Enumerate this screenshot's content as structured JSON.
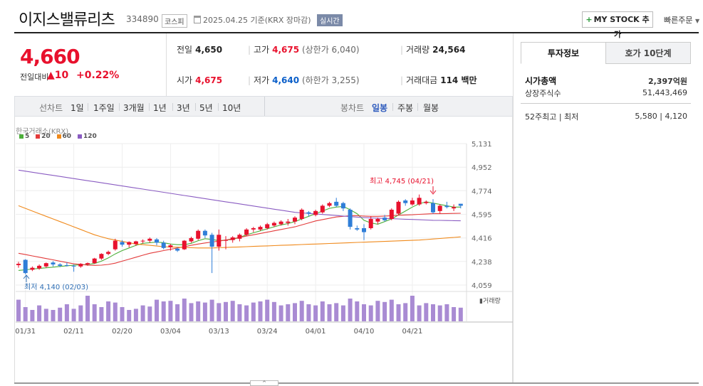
{
  "stock": {
    "name": "이지스밸류리츠",
    "code": "334890",
    "market": "코스피",
    "date_note": "2025.04.25  기준(KRX 장마감)",
    "realtime_label": "실시간",
    "mystock_label": "MY STOCK 추가",
    "quick_order_label": "빠른주문"
  },
  "price": {
    "current": "4,660",
    "change_label": "전일대비",
    "change_arrow": "▲",
    "change_value": "10",
    "change_pct": "+0.22%"
  },
  "stats": {
    "prev_label": "전일",
    "prev": "4,650",
    "high_label": "고가",
    "high": "4,675",
    "upper_limit": "(상한가 6,040)",
    "volume_label": "거래량",
    "volume": "24,564",
    "open_label": "시가",
    "open": "4,675",
    "low_label": "저가",
    "low": "4,640",
    "lower_limit": "(하한가 3,255)",
    "amount_label": "거래대금",
    "amount": "114 백만"
  },
  "toolbar": {
    "line_label": "선차트",
    "periods": [
      "1일",
      "1주일",
      "3개월",
      "1년",
      "3년",
      "5년",
      "10년"
    ],
    "candle_label": "봉차트",
    "candles": [
      "일봉",
      "주봉",
      "월봉"
    ],
    "active_candle": "일봉"
  },
  "chart_meta": {
    "exchange": "한국거래소(KRX)",
    "ma_legend": [
      {
        "label": "5",
        "color": "#4caf3a"
      },
      {
        "label": "20",
        "color": "#e33b3b"
      },
      {
        "label": "60",
        "color": "#f08a1c"
      },
      {
        "label": "120",
        "color": "#8a5cc2"
      }
    ],
    "volume_label": "거래량",
    "high_note": "최고 4,745 (04/21)",
    "low_note": "최저 4,140 (02/03)",
    "up_color": "#e8112d",
    "down_color": "#2f7ed8",
    "volume_color": "#a98bd3"
  },
  "chart_data": {
    "type": "candlestick",
    "y_ticks": [
      5131,
      4952,
      4774,
      4595,
      4416,
      4238,
      4059
    ],
    "ylim": [
      4059,
      5131
    ],
    "x_ticks": [
      "01/31",
      "02/11",
      "02/20",
      "03/04",
      "03/13",
      "03/24",
      "04/01",
      "04/10",
      "04/21"
    ],
    "x_tick_index": [
      1,
      8,
      15,
      22,
      29,
      36,
      43,
      50,
      57
    ],
    "candles": [
      {
        "o": 4210,
        "h": 4235,
        "l": 4190,
        "c": 4220
      },
      {
        "o": 4250,
        "h": 4255,
        "l": 4140,
        "c": 4150
      },
      {
        "o": 4175,
        "h": 4200,
        "l": 4165,
        "c": 4190
      },
      {
        "o": 4185,
        "h": 4215,
        "l": 4175,
        "c": 4205
      },
      {
        "o": 4200,
        "h": 4230,
        "l": 4190,
        "c": 4225
      },
      {
        "o": 4230,
        "h": 4240,
        "l": 4200,
        "c": 4215
      },
      {
        "o": 4215,
        "h": 4225,
        "l": 4195,
        "c": 4205
      },
      {
        "o": 4210,
        "h": 4230,
        "l": 4200,
        "c": 4205
      },
      {
        "o": 4205,
        "h": 4215,
        "l": 4160,
        "c": 4200
      },
      {
        "o": 4200,
        "h": 4225,
        "l": 4190,
        "c": 4220
      },
      {
        "o": 4215,
        "h": 4230,
        "l": 4205,
        "c": 4225
      },
      {
        "o": 4225,
        "h": 4265,
        "l": 4220,
        "c": 4260
      },
      {
        "o": 4260,
        "h": 4300,
        "l": 4250,
        "c": 4295
      },
      {
        "o": 4295,
        "h": 4320,
        "l": 4285,
        "c": 4310
      },
      {
        "o": 4330,
        "h": 4410,
        "l": 4320,
        "c": 4395
      },
      {
        "o": 4385,
        "h": 4400,
        "l": 4350,
        "c": 4365
      },
      {
        "o": 4365,
        "h": 4390,
        "l": 4345,
        "c": 4385
      },
      {
        "o": 4370,
        "h": 4395,
        "l": 4355,
        "c": 4390
      },
      {
        "o": 4390,
        "h": 4405,
        "l": 4375,
        "c": 4395
      },
      {
        "o": 4395,
        "h": 4420,
        "l": 4380,
        "c": 4410
      },
      {
        "o": 4405,
        "h": 4415,
        "l": 4360,
        "c": 4380
      },
      {
        "o": 4380,
        "h": 4395,
        "l": 4330,
        "c": 4340
      },
      {
        "o": 4345,
        "h": 4370,
        "l": 4320,
        "c": 4360
      },
      {
        "o": 4335,
        "h": 4345,
        "l": 4310,
        "c": 4320
      },
      {
        "o": 4330,
        "h": 4400,
        "l": 4325,
        "c": 4395
      },
      {
        "o": 4390,
        "h": 4425,
        "l": 4380,
        "c": 4415
      },
      {
        "o": 4410,
        "h": 4480,
        "l": 4400,
        "c": 4470
      },
      {
        "o": 4470,
        "h": 4480,
        "l": 4415,
        "c": 4435
      },
      {
        "o": 4440,
        "h": 4455,
        "l": 4150,
        "c": 4350
      },
      {
        "o": 4350,
        "h": 4480,
        "l": 4320,
        "c": 4440
      },
      {
        "o": 4400,
        "h": 4430,
        "l": 4330,
        "c": 4400
      },
      {
        "o": 4400,
        "h": 4430,
        "l": 4380,
        "c": 4420
      },
      {
        "o": 4410,
        "h": 4450,
        "l": 4390,
        "c": 4440
      },
      {
        "o": 4440,
        "h": 4490,
        "l": 4430,
        "c": 4480
      },
      {
        "o": 4480,
        "h": 4500,
        "l": 4460,
        "c": 4490
      },
      {
        "o": 4480,
        "h": 4510,
        "l": 4470,
        "c": 4500
      },
      {
        "o": 4490,
        "h": 4530,
        "l": 4480,
        "c": 4520
      },
      {
        "o": 4510,
        "h": 4540,
        "l": 4500,
        "c": 4530
      },
      {
        "o": 4520,
        "h": 4550,
        "l": 4510,
        "c": 4540
      },
      {
        "o": 4530,
        "h": 4560,
        "l": 4510,
        "c": 4540
      },
      {
        "o": 4540,
        "h": 4580,
        "l": 4520,
        "c": 4570
      },
      {
        "o": 4560,
        "h": 4640,
        "l": 4550,
        "c": 4630
      },
      {
        "o": 4610,
        "h": 4620,
        "l": 4580,
        "c": 4600
      },
      {
        "o": 4590,
        "h": 4630,
        "l": 4580,
        "c": 4620
      },
      {
        "o": 4610,
        "h": 4670,
        "l": 4600,
        "c": 4660
      },
      {
        "o": 4660,
        "h": 4690,
        "l": 4650,
        "c": 4680
      },
      {
        "o": 4690,
        "h": 4720,
        "l": 4650,
        "c": 4660
      },
      {
        "o": 4680,
        "h": 4690,
        "l": 4620,
        "c": 4640
      },
      {
        "o": 4630,
        "h": 4640,
        "l": 4480,
        "c": 4500
      },
      {
        "o": 4490,
        "h": 4510,
        "l": 4470,
        "c": 4480
      },
      {
        "o": 4490,
        "h": 4520,
        "l": 4400,
        "c": 4460
      },
      {
        "o": 4490,
        "h": 4580,
        "l": 4480,
        "c": 4560
      },
      {
        "o": 4540,
        "h": 4570,
        "l": 4520,
        "c": 4560
      },
      {
        "o": 4570,
        "h": 4590,
        "l": 4540,
        "c": 4550
      },
      {
        "o": 4560,
        "h": 4640,
        "l": 4550,
        "c": 4630
      },
      {
        "o": 4600,
        "h": 4700,
        "l": 4590,
        "c": 4690
      },
      {
        "o": 4700,
        "h": 4710,
        "l": 4660,
        "c": 4680
      },
      {
        "o": 4670,
        "h": 4720,
        "l": 4660,
        "c": 4700
      },
      {
        "o": 4670,
        "h": 4745,
        "l": 4660,
        "c": 4720
      },
      {
        "o": 4680,
        "h": 4700,
        "l": 4670,
        "c": 4690
      },
      {
        "o": 4680,
        "h": 4710,
        "l": 4600,
        "c": 4610
      },
      {
        "o": 4620,
        "h": 4670,
        "l": 4600,
        "c": 4660
      },
      {
        "o": 4660,
        "h": 4690,
        "l": 4640,
        "c": 4650
      },
      {
        "o": 4640,
        "h": 4670,
        "l": 4620,
        "c": 4650
      },
      {
        "o": 4675,
        "h": 4675,
        "l": 4640,
        "c": 4660
      }
    ],
    "volume": [
      38,
      25,
      20,
      28,
      22,
      20,
      24,
      30,
      22,
      28,
      45,
      30,
      25,
      35,
      33,
      25,
      20,
      22,
      28,
      26,
      38,
      35,
      36,
      30,
      40,
      32,
      35,
      33,
      38,
      32,
      34,
      36,
      30,
      28,
      33,
      35,
      38,
      34,
      28,
      30,
      32,
      36,
      30,
      28,
      35,
      30,
      32,
      28,
      40,
      35,
      30,
      28,
      36,
      34,
      38,
      30,
      32,
      45,
      28,
      32,
      30,
      28,
      30,
      25,
      24
    ],
    "ma5": [
      4170,
      4175,
      4180,
      4185,
      4190,
      4195,
      4200,
      4205,
      4210,
      4212,
      4215,
      4222,
      4240,
      4265,
      4295,
      4320,
      4340,
      4360,
      4375,
      4380,
      4385,
      4380,
      4370,
      4365,
      4365,
      4375,
      4395,
      4410,
      4405,
      4395,
      4400,
      4405,
      4420,
      4440,
      4455,
      4470,
      4485,
      4500,
      4515,
      4525,
      4540,
      4560,
      4580,
      4600,
      4620,
      4640,
      4650,
      4655,
      4630,
      4600,
      4550,
      4530,
      4520,
      4540,
      4560,
      4590,
      4620,
      4650,
      4675,
      4690,
      4680,
      4670,
      4660,
      4650,
      4650
    ],
    "ma20": [
      4300,
      4290,
      4280,
      4270,
      4260,
      4250,
      4240,
      4230,
      4220,
      4215,
      4210,
      4208,
      4210,
      4215,
      4225,
      4240,
      4255,
      4270,
      4285,
      4300,
      4310,
      4320,
      4330,
      4340,
      4350,
      4360,
      4370,
      4378,
      4385,
      4392,
      4400,
      4410,
      4420,
      4430,
      4440,
      4450,
      4460,
      4470,
      4480,
      4490,
      4500,
      4515,
      4530,
      4545,
      4555,
      4565,
      4575,
      4580,
      4585,
      4585,
      4582,
      4580,
      4580,
      4582,
      4585,
      4588,
      4590,
      4592,
      4595,
      4597,
      4600,
      4600,
      4601,
      4602,
      4603
    ],
    "ma60": [
      4660,
      4640,
      4620,
      4600,
      4580,
      4560,
      4540,
      4520,
      4500,
      4480,
      4460,
      4440,
      4425,
      4410,
      4400,
      4390,
      4380,
      4370,
      4365,
      4360,
      4355,
      4350,
      4348,
      4346,
      4344,
      4342,
      4340,
      4340,
      4340,
      4342,
      4344,
      4346,
      4348,
      4350,
      4352,
      4354,
      4356,
      4358,
      4360,
      4362,
      4364,
      4366,
      4368,
      4370,
      4372,
      4374,
      4376,
      4378,
      4380,
      4382,
      4384,
      4386,
      4388,
      4390,
      4392,
      4394,
      4396,
      4398,
      4400,
      4404,
      4408,
      4412,
      4416,
      4420,
      4424
    ],
    "ma120": [
      4930,
      4922,
      4914,
      4906,
      4898,
      4890,
      4882,
      4874,
      4866,
      4858,
      4850,
      4842,
      4834,
      4826,
      4818,
      4810,
      4802,
      4794,
      4786,
      4778,
      4770,
      4762,
      4754,
      4746,
      4738,
      4730,
      4722,
      4714,
      4706,
      4698,
      4690,
      4682,
      4674,
      4666,
      4658,
      4650,
      4642,
      4634,
      4626,
      4618,
      4610,
      4606,
      4602,
      4598,
      4594,
      4590,
      4586,
      4582,
      4578,
      4574,
      4570,
      4568,
      4566,
      4564,
      4562,
      4560,
      4558,
      4556,
      4554,
      4552,
      4550,
      4549,
      4548,
      4547,
      4546
    ]
  },
  "right_panel": {
    "tab_info": "투자정보",
    "tab_hoga": "호가 10단계",
    "market_cap_label": "시가총액",
    "market_cap": "2,397억원",
    "shares_label": "상장주식수",
    "shares": "51,443,469",
    "week52_label": "52주최고 | 최저",
    "week52": "5,580 | 4,120"
  }
}
